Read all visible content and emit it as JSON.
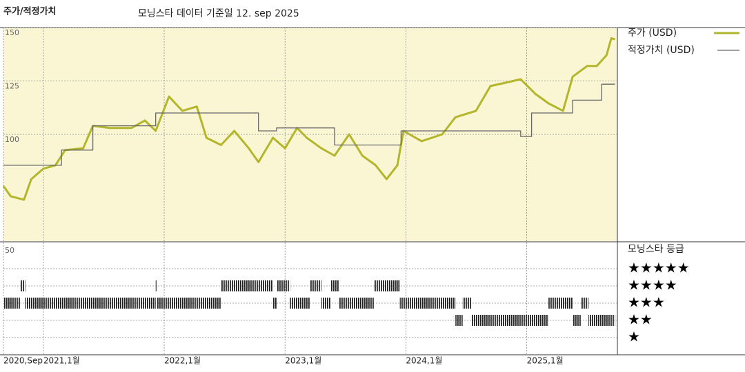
{
  "chart_data": {
    "type": "line",
    "title": "주가/적정가치",
    "subtitle": "모닝스타 데이터 기준일 12. sep 2025",
    "xlim": [
      2020.67,
      2025.75
    ],
    "ylim": [
      50,
      150
    ],
    "yticks": [
      100,
      125,
      150
    ],
    "xticks": [
      {
        "value": 2020.67,
        "label": "2020,Sep"
      },
      {
        "value": 2021,
        "label": "2021,1월"
      },
      {
        "value": 2022,
        "label": "2022,1월"
      },
      {
        "value": 2023,
        "label": "2023,1월"
      },
      {
        "value": 2024,
        "label": "2024,1월"
      },
      {
        "value": 2025,
        "label": "2025,1월"
      }
    ],
    "grid": true,
    "series": [
      {
        "name": "주가 (USD)",
        "color": "#b3b52a",
        "x": [
          2020.67,
          2020.73,
          2020.84,
          2020.9,
          2021.0,
          2021.1,
          2021.18,
          2021.33,
          2021.41,
          2021.55,
          2021.73,
          2021.84,
          2021.93,
          2022.04,
          2022.15,
          2022.27,
          2022.35,
          2022.47,
          2022.58,
          2022.7,
          2022.78,
          2022.9,
          2023.0,
          2023.1,
          2023.18,
          2023.3,
          2023.41,
          2023.53,
          2023.64,
          2023.75,
          2023.84,
          2023.93,
          2023.98,
          2024.13,
          2024.3,
          2024.41,
          2024.58,
          2024.7,
          2024.81,
          2024.95,
          2025.07,
          2025.18,
          2025.3,
          2025.38,
          2025.5,
          2025.58,
          2025.66,
          2025.7,
          2025.73
        ],
        "values": [
          75.8,
          71,
          69.4,
          79,
          83.9,
          85.5,
          92.6,
          93.5,
          104,
          103,
          103,
          106.5,
          101.6,
          117.7,
          111,
          113,
          98.4,
          95,
          101.6,
          93.5,
          87,
          98.4,
          93.5,
          103,
          98.4,
          93.5,
          90,
          100,
          90,
          85.5,
          79,
          85.5,
          101.6,
          96.8,
          100,
          108,
          111,
          122.6,
          124,
          125.8,
          119,
          114.5,
          111,
          127,
          132,
          132,
          137,
          145,
          144.5
        ]
      },
      {
        "name": "적정가치 (USD)",
        "color": "#666666",
        "x": [
          2020.67,
          2021.15,
          2021.15,
          2021.41,
          2021.41,
          2021.93,
          2021.93,
          2022.78,
          2022.78,
          2022.93,
          2022.93,
          2023.41,
          2023.41,
          2023.96,
          2023.96,
          2024.95,
          2024.95,
          2025.04,
          2025.04,
          2025.38,
          2025.38,
          2025.62,
          2025.62,
          2025.73
        ],
        "values": [
          85.5,
          85.5,
          92.6,
          92.6,
          104,
          104,
          110,
          110,
          101.6,
          101.6,
          103,
          103,
          95,
          95,
          101.6,
          101.6,
          99,
          99,
          110,
          110,
          116,
          116,
          123.5,
          123.5
        ]
      }
    ],
    "rating_panel_label": "50",
    "rating_title": "모닝스타 등급",
    "rating_legend": [
      "★★★★★",
      "★★★★",
      "★★★",
      "★★",
      "★"
    ],
    "rating_periods": [
      {
        "start": 2020.67,
        "end": 2020.81,
        "stars": 3
      },
      {
        "start": 2020.81,
        "end": 2020.85,
        "stars": 4
      },
      {
        "start": 2020.85,
        "end": 2021.93,
        "stars": 3
      },
      {
        "start": 2021.93,
        "end": 2021.94,
        "stars": 4
      },
      {
        "start": 2021.94,
        "end": 2022.47,
        "stars": 3
      },
      {
        "start": 2022.47,
        "end": 2022.9,
        "stars": 4
      },
      {
        "start": 2022.9,
        "end": 2022.93,
        "stars": 3
      },
      {
        "start": 2022.93,
        "end": 2023.04,
        "stars": 4
      },
      {
        "start": 2023.04,
        "end": 2023.21,
        "stars": 3
      },
      {
        "start": 2023.21,
        "end": 2023.3,
        "stars": 4
      },
      {
        "start": 2023.3,
        "end": 2023.38,
        "stars": 3
      },
      {
        "start": 2023.38,
        "end": 2023.45,
        "stars": 4
      },
      {
        "start": 2023.45,
        "end": 2023.74,
        "stars": 3
      },
      {
        "start": 2023.74,
        "end": 2023.95,
        "stars": 4
      },
      {
        "start": 2023.95,
        "end": 2024.41,
        "stars": 3
      },
      {
        "start": 2024.41,
        "end": 2024.47,
        "stars": 2
      },
      {
        "start": 2024.47,
        "end": 2024.54,
        "stars": 3
      },
      {
        "start": 2024.54,
        "end": 2025.18,
        "stars": 2
      },
      {
        "start": 2025.18,
        "end": 2025.38,
        "stars": 3
      },
      {
        "start": 2025.38,
        "end": 2025.45,
        "stars": 2
      },
      {
        "start": 2025.45,
        "end": 2025.51,
        "stars": 3
      },
      {
        "start": 2025.51,
        "end": 2025.73,
        "stars": 2
      }
    ]
  }
}
